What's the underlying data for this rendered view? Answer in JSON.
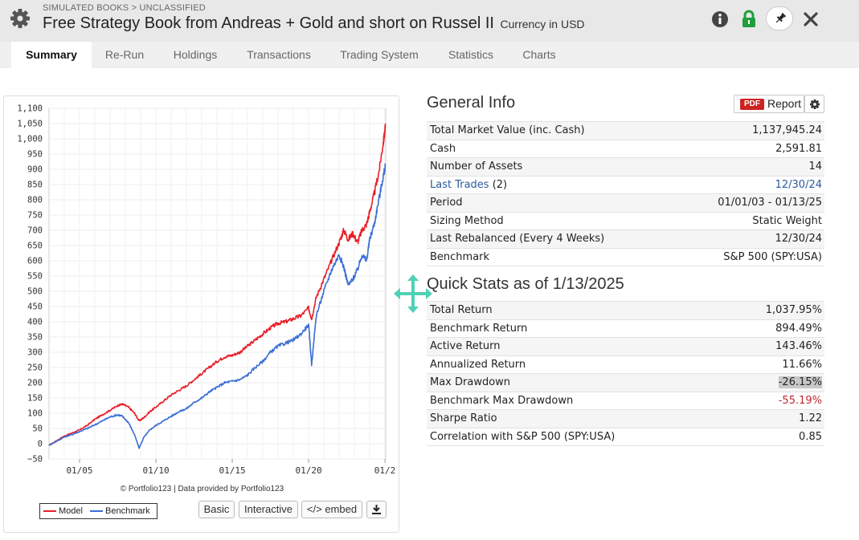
{
  "header": {
    "breadcrumb": "SIMULATED BOOKS > UNCLASSIFIED",
    "title": "Free Strategy Book from Andreas + Gold and short on Russel II",
    "currency": "Currency in USD",
    "icons": [
      "gear-icon",
      "info-icon",
      "lock-icon",
      "pin-icon",
      "close-icon"
    ],
    "lock_color": "#1f9e3a"
  },
  "tabs": [
    {
      "label": "Summary",
      "active": true
    },
    {
      "label": "Re-Run",
      "active": false
    },
    {
      "label": "Holdings",
      "active": false
    },
    {
      "label": "Transactions",
      "active": false
    },
    {
      "label": "Trading System",
      "active": false
    },
    {
      "label": "Statistics",
      "active": false
    },
    {
      "label": "Charts",
      "active": false
    }
  ],
  "chart": {
    "credit": "© Portfolio123 | Data provided by Portfolio123",
    "buttons": {
      "basic": "Basic",
      "interactive": "Interactive",
      "embed": "</> embed"
    },
    "download_icon": "download-icon"
  },
  "chart_data": {
    "type": "line",
    "title": "",
    "xlabel": "",
    "ylabel": "",
    "x_ticks": [
      "01/05",
      "01/10",
      "01/15",
      "01/20",
      "01/2"
    ],
    "y_ticks": [
      -50,
      0,
      50,
      100,
      150,
      200,
      250,
      300,
      350,
      400,
      450,
      500,
      550,
      600,
      650,
      700,
      750,
      800,
      850,
      900,
      950,
      1000,
      1050,
      1100
    ],
    "y_tick_labels": [
      "−50",
      "0",
      "50",
      "100",
      "150",
      "200",
      "250",
      "300",
      "350",
      "400",
      "450",
      "500",
      "550",
      "600",
      "650",
      "700",
      "750",
      "800",
      "850",
      "900",
      "950",
      "1,000",
      "1,050",
      "1,100"
    ],
    "ylim": [
      -50,
      1100
    ],
    "xlim": [
      2003.0,
      2025.05
    ],
    "grid": true,
    "legend": "bottom-left",
    "series": [
      {
        "name": "Model",
        "color": "#e8202a",
        "x": [
          2003.0,
          2003.5,
          2004.0,
          2004.5,
          2005.0,
          2005.5,
          2006.0,
          2006.5,
          2007.0,
          2007.5,
          2007.8,
          2008.2,
          2008.6,
          2008.9,
          2009.2,
          2009.6,
          2010.0,
          2010.5,
          2011.0,
          2011.5,
          2012.0,
          2012.5,
          2013.0,
          2013.5,
          2014.0,
          2014.5,
          2015.0,
          2015.5,
          2016.0,
          2016.5,
          2017.0,
          2017.5,
          2018.0,
          2018.5,
          2019.0,
          2019.5,
          2020.0,
          2020.2,
          2020.5,
          2021.0,
          2021.5,
          2022.0,
          2022.3,
          2022.6,
          2022.9,
          2023.2,
          2023.5,
          2023.8,
          2024.0,
          2024.3,
          2024.6,
          2024.9,
          2025.03
        ],
        "y": [
          -5,
          10,
          25,
          35,
          45,
          60,
          80,
          95,
          110,
          125,
          130,
          120,
          100,
          75,
          85,
          105,
          120,
          140,
          160,
          175,
          190,
          210,
          230,
          250,
          270,
          285,
          290,
          300,
          320,
          340,
          360,
          380,
          395,
          400,
          410,
          420,
          445,
          410,
          480,
          540,
          600,
          660,
          700,
          670,
          690,
          660,
          700,
          720,
          760,
          820,
          890,
          990,
          1040
        ]
      },
      {
        "name": "Benchmark",
        "color": "#3b6fd4",
        "x": [
          2003.0,
          2003.5,
          2004.0,
          2004.5,
          2005.0,
          2005.5,
          2006.0,
          2006.5,
          2007.0,
          2007.5,
          2007.8,
          2008.2,
          2008.6,
          2008.9,
          2009.2,
          2009.6,
          2010.0,
          2010.5,
          2011.0,
          2011.5,
          2012.0,
          2012.5,
          2013.0,
          2013.5,
          2014.0,
          2014.5,
          2015.0,
          2015.5,
          2016.0,
          2016.5,
          2017.0,
          2017.5,
          2018.0,
          2018.5,
          2019.0,
          2019.5,
          2020.0,
          2020.2,
          2020.5,
          2021.0,
          2021.5,
          2022.0,
          2022.3,
          2022.6,
          2022.9,
          2023.2,
          2023.5,
          2023.8,
          2024.0,
          2024.3,
          2024.6,
          2024.9,
          2025.03
        ],
        "y": [
          -5,
          8,
          22,
          30,
          40,
          50,
          62,
          75,
          88,
          95,
          90,
          70,
          30,
          -15,
          20,
          45,
          60,
          75,
          90,
          105,
          115,
          135,
          150,
          170,
          185,
          200,
          205,
          210,
          225,
          250,
          270,
          300,
          320,
          330,
          340,
          360,
          390,
          260,
          420,
          500,
          570,
          620,
          580,
          520,
          540,
          570,
          620,
          600,
          670,
          720,
          800,
          880,
          910
        ]
      }
    ]
  },
  "general_info": {
    "title": "General Info",
    "report_label": "Report",
    "pdf_label": "PDF",
    "rows": [
      {
        "label": "Total Market Value (inc. Cash)",
        "value": "1,137,945.24"
      },
      {
        "label": "Cash",
        "value": "2,591.81"
      },
      {
        "label": "Number of Assets",
        "value": "14"
      },
      {
        "label": "Last Trades",
        "label_suffix": "(2)",
        "value": "12/30/24"
      },
      {
        "label": "Period",
        "value": "01/01/03 - 01/13/25"
      },
      {
        "label": "Sizing Method",
        "value": "Static Weight"
      },
      {
        "label": "Last Rebalanced (Every 4 Weeks)",
        "value": "12/30/24"
      },
      {
        "label": "Benchmark",
        "value": "S&P 500 (SPY:USA)"
      }
    ]
  },
  "quick_stats": {
    "title": "Quick Stats as of 1/13/2025",
    "rows": [
      {
        "label": "Total Return",
        "value": "1,037.95%"
      },
      {
        "label": "Benchmark Return",
        "value": "894.49%"
      },
      {
        "label": "Active Return",
        "value": "143.46%"
      },
      {
        "label": "Annualized Return",
        "value": "11.66%"
      },
      {
        "label": "Max Drawdown",
        "value": "-26.15%"
      },
      {
        "label": "Benchmark Max Drawdown",
        "value": "-55.19%"
      },
      {
        "label": "Sharpe Ratio",
        "value": "1.22"
      },
      {
        "label": "Correlation with S&P 500 (SPY:USA)",
        "value": "0.85"
      }
    ]
  }
}
